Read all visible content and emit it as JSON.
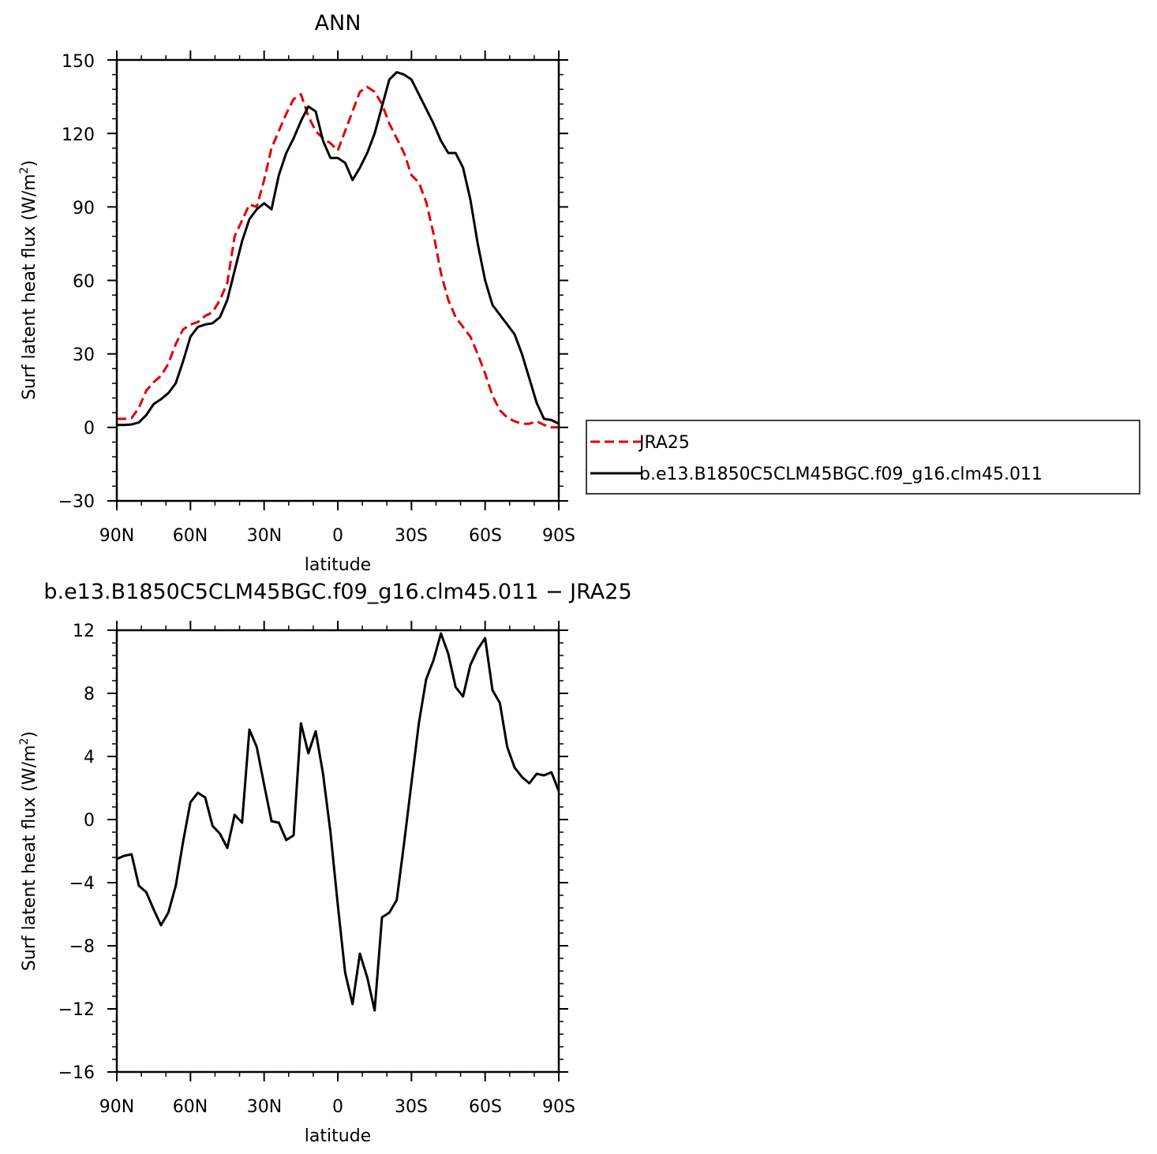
{
  "chart_data": [
    {
      "type": "line",
      "title": "ANN",
      "xlabel": "latitude",
      "ylabel": "Surf latent heat flux (W/m²)",
      "ylabel_parts": [
        "Surf latent heat flux (W/m",
        "2",
        ")"
      ],
      "xlim": [
        90,
        -90
      ],
      "ylim": [
        -30,
        150
      ],
      "yticks": [
        -30,
        0,
        30,
        60,
        90,
        120,
        150
      ],
      "yticklabels": [
        "−30",
        "0",
        "30",
        "60",
        "90",
        "120",
        "150"
      ],
      "xticks": [
        90,
        60,
        30,
        0,
        -30,
        -60,
        -90
      ],
      "xticklabels": [
        "90N",
        "60N",
        "30N",
        "0",
        "30S",
        "60S",
        "90S"
      ],
      "legend": {
        "placement": "right-outside"
      },
      "x": [
        90,
        87,
        84,
        81,
        78,
        75,
        72,
        69,
        66,
        63,
        60,
        57,
        54,
        51,
        48,
        45,
        42,
        39,
        36,
        33,
        30,
        27,
        24,
        21,
        18,
        15,
        12,
        9,
        6,
        3,
        0,
        -3,
        -6,
        -9,
        -12,
        -15,
        -18,
        -21,
        -24,
        -27,
        -30,
        -33,
        -36,
        -39,
        -42,
        -45,
        -48,
        -51,
        -54,
        -57,
        -60,
        -63,
        -66,
        -69,
        -72,
        -75,
        -78,
        -81,
        -84,
        -87,
        -90
      ],
      "series": [
        {
          "name": "JRA25",
          "color": "#e00000",
          "dash": "dashed",
          "values": [
            3.5,
            3.5,
            3.8,
            8,
            15,
            18.5,
            21,
            26,
            34,
            40,
            42,
            43,
            45.5,
            47,
            52,
            59,
            78,
            84.5,
            91,
            90,
            101,
            114,
            121,
            128,
            134,
            136,
            127,
            121,
            118,
            116,
            113,
            121,
            129,
            137,
            139,
            137,
            132,
            124,
            118,
            112,
            103,
            100,
            92,
            79,
            63,
            52,
            45,
            41,
            37,
            30,
            22,
            13,
            7,
            4,
            2.5,
            1.5,
            1.5,
            2.5,
            1,
            0,
            0
          ],
          "values_note": ""
        },
        {
          "name": "b.e13.B1850C5CLM45BGC.f09_g16.clm45.011",
          "color": "#000000",
          "dash": "solid",
          "values": [
            1,
            1,
            1.2,
            2,
            5,
            9.5,
            11.5,
            14,
            18,
            27,
            37,
            41,
            42,
            42.5,
            45,
            52,
            64,
            76,
            85,
            89,
            91.5,
            89,
            103,
            112,
            118,
            125,
            131,
            129,
            117,
            110,
            110,
            108,
            101,
            106,
            112,
            120,
            131,
            142,
            145,
            144,
            142,
            136,
            130,
            124,
            117,
            112,
            112,
            106,
            93,
            75,
            60,
            50,
            46,
            42,
            38,
            30,
            20,
            10,
            3.5,
            3,
            1.5
          ],
          "values_note": ""
        }
      ]
    },
    {
      "type": "line",
      "title": "b.e13.B1850C5CLM45BGC.f09_g16.clm45.011 − JRA25",
      "xlabel": "latitude",
      "ylabel": "Surf latent heat flux (W/m²)",
      "ylabel_parts": [
        "Surf latent heat flux (W/m",
        "2",
        ")"
      ],
      "xlim": [
        90,
        -90
      ],
      "ylim": [
        -16,
        12
      ],
      "yticks": [
        -16,
        -12,
        -8,
        -4,
        0,
        4,
        8,
        12
      ],
      "yticklabels": [
        "−16",
        "−12",
        "−8",
        "−4",
        "0",
        "4",
        "8",
        "12"
      ],
      "xticks": [
        90,
        60,
        30,
        0,
        -30,
        -60,
        -90
      ],
      "xticklabels": [
        "90N",
        "60N",
        "30N",
        "0",
        "30S",
        "60S",
        "90S"
      ],
      "x": [
        90,
        87,
        84,
        81,
        78,
        75,
        72,
        69,
        66,
        63,
        60,
        57,
        54,
        51,
        48,
        45,
        42,
        39,
        36,
        33,
        30,
        27,
        24,
        21,
        18,
        15,
        12,
        9,
        6,
        3,
        0,
        -3,
        -6,
        -9,
        -12,
        -15,
        -18,
        -21,
        -24,
        -27,
        -30,
        -33,
        -36,
        -39,
        -42,
        -45,
        -48,
        -51,
        -54,
        -57,
        -60,
        -63,
        -66,
        -69,
        -72,
        -75,
        -78,
        -81,
        -84,
        -87,
        -90
      ],
      "series": [
        {
          "name": "",
          "color": "#000000",
          "dash": "solid",
          "values": [
            -2.5,
            -2.3,
            -2.2,
            -4.2,
            -4.6,
            -5.7,
            -6.7,
            -5.9,
            -4.2,
            -1.4,
            1.1,
            1.7,
            1.4,
            -0.4,
            -0.9,
            -1.8,
            0.3,
            -0.2,
            5.7,
            4.6,
            2.2,
            -0.1,
            -0.2,
            -1.3,
            -1.0,
            6.1,
            4.2,
            5.6,
            2.9,
            -0.8,
            -5.4,
            -9.7,
            -11.7,
            -8.5,
            -10.0,
            -12.1,
            -6.2,
            -5.9,
            -5.1,
            -1.5,
            2.3,
            6.1,
            8.9,
            10.1,
            11.8,
            10.5,
            8.4,
            7.8,
            9.8,
            10.8,
            11.5,
            8.2,
            7.4,
            4.6,
            3.3,
            2.7,
            2.3,
            2.9,
            2.8,
            3.0,
            1.8
          ]
        }
      ]
    }
  ]
}
